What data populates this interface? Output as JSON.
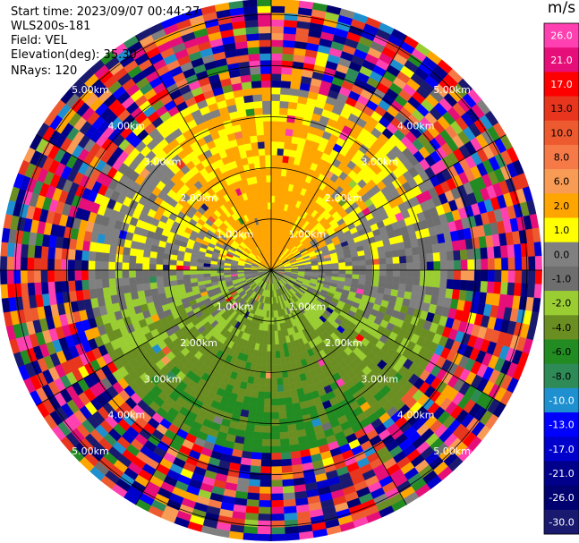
{
  "info": {
    "start_time": "Start time: 2023/09/07 00:44:27",
    "instrument": "WLS200s-181",
    "field": "Field: VEL",
    "elevation": "Elevation(deg): 35.30",
    "nrays": "NRays: 120"
  },
  "chart_data": {
    "type": "heatmap",
    "subtype": "polar-ppi",
    "field": "VEL",
    "units": "m/s",
    "range_rings": [
      {
        "value_km": 1.0,
        "label": "1.00km"
      },
      {
        "value_km": 2.0,
        "label": "2.00km"
      },
      {
        "value_km": 3.0,
        "label": "3.00km"
      },
      {
        "value_km": 4.0,
        "label": "4.00km"
      },
      {
        "value_km": 5.0,
        "label": "5.00km"
      }
    ],
    "max_range_km": 5.3,
    "spokes_deg": [
      0,
      30,
      60,
      90,
      120,
      150,
      180,
      210,
      240,
      270,
      300,
      330
    ],
    "nrays": 120,
    "colorbar": {
      "unit": "m/s",
      "position": "right",
      "vmin": -30.0,
      "vmax": 30.0,
      "ticks": [
        "26.0",
        "21.0",
        "17.0",
        "13.0",
        "10.0",
        "8.0",
        "6.0",
        "2.0",
        "1.0",
        "0.0",
        "-1.0",
        "-2.0",
        "-4.0",
        "-6.0",
        "-8.0",
        "-10.0",
        "-13.0",
        "-17.0",
        "-21.0",
        "-26.0",
        "-30.0"
      ],
      "bins": [
        {
          "from": 26.0,
          "to": 30.0,
          "color": "#ff40b0"
        },
        {
          "from": 21.0,
          "to": 26.0,
          "color": "#e60e78"
        },
        {
          "from": 17.0,
          "to": 21.0,
          "color": "#ff0000"
        },
        {
          "from": 13.0,
          "to": 17.0,
          "color": "#e8351e"
        },
        {
          "from": 10.0,
          "to": 13.0,
          "color": "#ee5a30"
        },
        {
          "from": 8.0,
          "to": 10.0,
          "color": "#f57a48"
        },
        {
          "from": 6.0,
          "to": 8.0,
          "color": "#f89c55"
        },
        {
          "from": 2.0,
          "to": 6.0,
          "color": "#ffa500"
        },
        {
          "from": 1.0,
          "to": 2.0,
          "color": "#ffff00"
        },
        {
          "from": 0.0,
          "to": 1.0,
          "color": "#808080"
        },
        {
          "from": -1.0,
          "to": 0.0,
          "color": "#6e6e6e"
        },
        {
          "from": -2.0,
          "to": -1.0,
          "color": "#9acd32"
        },
        {
          "from": -4.0,
          "to": -2.0,
          "color": "#6b8e23"
        },
        {
          "from": -6.0,
          "to": -4.0,
          "color": "#228b22"
        },
        {
          "from": -8.0,
          "to": -6.0,
          "color": "#2e8b57"
        },
        {
          "from": -10.0,
          "to": -8.0,
          "color": "#1e90d0"
        },
        {
          "from": -13.0,
          "to": -10.0,
          "color": "#0000ff"
        },
        {
          "from": -17.0,
          "to": -13.0,
          "color": "#0000cd"
        },
        {
          "from": -21.0,
          "to": -17.0,
          "color": "#00008b"
        },
        {
          "from": -26.0,
          "to": -21.0,
          "color": "#000070"
        },
        {
          "from": -30.0,
          "to": -26.0,
          "color": "#191970"
        }
      ]
    },
    "field_summary": {
      "north_sector_near_ms": 4.0,
      "north_sector_mid_ms": 1.5,
      "east_west_band_ms": 0.5,
      "south_sector_near_ms": -1.5,
      "south_sector_mid_ms": -5.0,
      "noise_beyond_km": 3.6
    },
    "grid": true
  }
}
